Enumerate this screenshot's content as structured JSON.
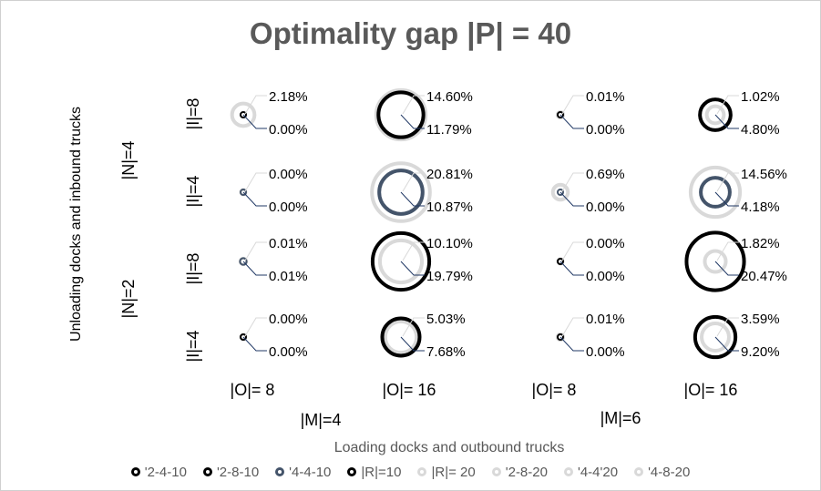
{
  "chart_data": {
    "type": "bubble-matrix",
    "title": "Optimality gap |P| = 40",
    "ylabel": "Unloading docks and inbound trucks",
    "xlabel": "Loading docks and outbound trucks",
    "n_groups": [
      "|N|=4",
      "|N|=2"
    ],
    "i_rows": [
      "|I|=8",
      "|I|=4",
      "|I|=8",
      "|I|=4"
    ],
    "o_cols": [
      "|O|= 8",
      "|O|= 16",
      "|O|= 8",
      "|O|= 16"
    ],
    "m_groups": [
      "|M|=4",
      "|M|=6"
    ],
    "legend": [
      {
        "name": "'2-4-10",
        "color": "#000000"
      },
      {
        "name": "'2-8-10",
        "color": "#000000"
      },
      {
        "name": "'4-4-10",
        "color": "#44546a"
      },
      {
        "name": "|R|=10",
        "color": "#000000"
      },
      {
        "name": "|R|= 20",
        "color": "#d9d9d9"
      },
      {
        "name": "'2-8-20",
        "color": "#d9d9d9"
      },
      {
        "name": "'4-4'20",
        "color": "#d9d9d9"
      },
      {
        "name": "'4-8-20",
        "color": "#d9d9d9"
      }
    ],
    "cells": [
      {
        "row": 0,
        "col": 0,
        "upper": "2.18%",
        "lower": "0.00%",
        "upper_value": 2.18,
        "lower_value": 0.0,
        "upper_color": "#d9d9d9",
        "lower_color": "#000000"
      },
      {
        "row": 0,
        "col": 1,
        "upper": "14.60%",
        "lower": "11.79%",
        "upper_value": 14.6,
        "lower_value": 11.79,
        "upper_color": "#d9d9d9",
        "lower_color": "#000000"
      },
      {
        "row": 0,
        "col": 2,
        "upper": "0.01%",
        "lower": "0.00%",
        "upper_value": 0.01,
        "lower_value": 0.0,
        "upper_color": "#d9d9d9",
        "lower_color": "#000000"
      },
      {
        "row": 0,
        "col": 3,
        "upper": "1.02%",
        "lower": "4.80%",
        "upper_value": 1.02,
        "lower_value": 4.8,
        "upper_color": "#d9d9d9",
        "lower_color": "#000000"
      },
      {
        "row": 1,
        "col": 0,
        "upper": "0.00%",
        "lower": "0.00%",
        "upper_value": 0.0,
        "lower_value": 0.0,
        "upper_color": "#d9d9d9",
        "lower_color": "#44546a"
      },
      {
        "row": 1,
        "col": 1,
        "upper": "20.81%",
        "lower": "10.87%",
        "upper_value": 20.81,
        "lower_value": 10.87,
        "upper_color": "#d9d9d9",
        "lower_color": "#44546a"
      },
      {
        "row": 1,
        "col": 2,
        "upper": "0.69%",
        "lower": "0.00%",
        "upper_value": 0.69,
        "lower_value": 0.0,
        "upper_color": "#d9d9d9",
        "lower_color": "#44546a"
      },
      {
        "row": 1,
        "col": 3,
        "upper": "14.56%",
        "lower": "4.18%",
        "upper_value": 14.56,
        "lower_value": 4.18,
        "upper_color": "#d9d9d9",
        "lower_color": "#44546a"
      },
      {
        "row": 2,
        "col": 0,
        "upper": "0.01%",
        "lower": "0.01%",
        "upper_value": 0.01,
        "lower_value": 0.01,
        "upper_color": "#d9d9d9",
        "lower_color": "#44546a"
      },
      {
        "row": 2,
        "col": 1,
        "upper": "10.10%",
        "lower": "19.79%",
        "upper_value": 10.1,
        "lower_value": 19.79,
        "upper_color": "#d9d9d9",
        "lower_color": "#000000"
      },
      {
        "row": 2,
        "col": 2,
        "upper": "0.00%",
        "lower": "0.00%",
        "upper_value": 0.0,
        "lower_value": 0.0,
        "upper_color": "#d9d9d9",
        "lower_color": "#000000"
      },
      {
        "row": 2,
        "col": 3,
        "upper": "1.82%",
        "lower": "20.47%",
        "upper_value": 1.82,
        "lower_value": 20.47,
        "upper_color": "#d9d9d9",
        "lower_color": "#000000"
      },
      {
        "row": 3,
        "col": 0,
        "upper": "0.00%",
        "lower": "0.00%",
        "upper_value": 0.0,
        "lower_value": 0.0,
        "upper_color": "#d9d9d9",
        "lower_color": "#000000"
      },
      {
        "row": 3,
        "col": 1,
        "upper": "5.03%",
        "lower": "7.68%",
        "upper_value": 5.03,
        "lower_value": 7.68,
        "upper_color": "#d9d9d9",
        "lower_color": "#000000"
      },
      {
        "row": 3,
        "col": 2,
        "upper": "0.01%",
        "lower": "0.00%",
        "upper_value": 0.01,
        "lower_value": 0.0,
        "upper_color": "#d9d9d9",
        "lower_color": "#000000"
      },
      {
        "row": 3,
        "col": 3,
        "upper": "3.59%",
        "lower": "9.20%",
        "upper_value": 3.59,
        "lower_value": 9.2,
        "upper_color": "#d9d9d9",
        "lower_color": "#000000"
      }
    ]
  }
}
